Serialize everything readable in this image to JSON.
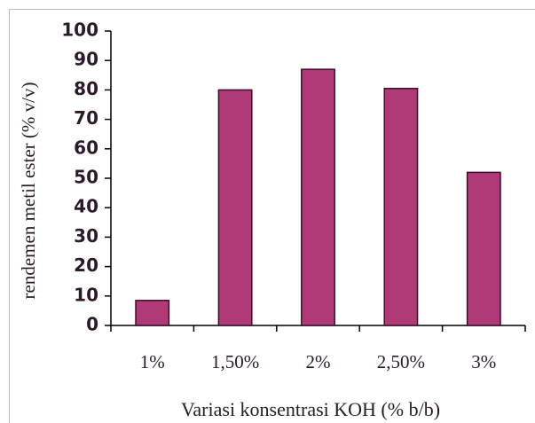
{
  "chart_data": {
    "type": "bar",
    "categories": [
      "1%",
      "1,50%",
      "2%",
      "2,50%",
      "3%"
    ],
    "values": [
      8.5,
      80,
      87,
      80.5,
      52
    ],
    "color": "#b03a78",
    "xlabel": "Variasi  konsentrasi KOH (% b/b)",
    "ylabel": "rendemen metil ester  (% v/v)",
    "ylim": [
      0,
      100
    ],
    "yticks": [
      0,
      10,
      20,
      30,
      40,
      50,
      60,
      70,
      80,
      90,
      100
    ],
    "grid": false
  }
}
